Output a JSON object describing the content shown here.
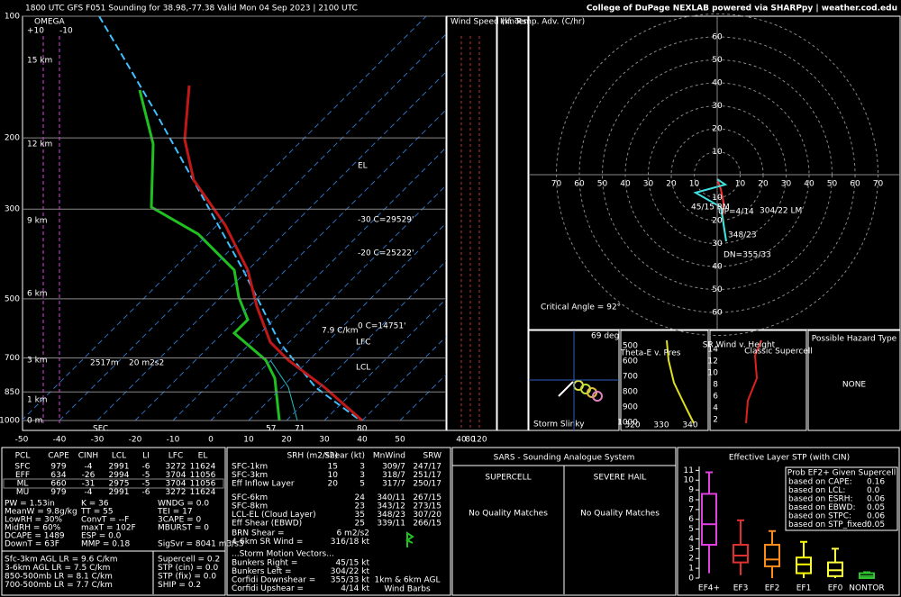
{
  "header": {
    "title": "1800 UTC GFS F051 Sounding for 38.98,-77.38 Valid  Mon 04 Sep 2023 | 2100 UTC",
    "credit": "College of DuPage NEXLAB powered via SHARPpy | weather.cod.edu"
  },
  "skewt": {
    "pressure_ticks": [
      100,
      200,
      300,
      500,
      700,
      850,
      1000
    ],
    "temp_ticks": [
      -50,
      -40,
      -30,
      -20,
      -10,
      0,
      10,
      20,
      30,
      40,
      50
    ],
    "omega_label": "OMEGA",
    "omega_ticks": [
      "+10",
      "-10"
    ],
    "height_labels": [
      "15 km",
      "12 km",
      "9 km",
      "6 km",
      "3 km",
      "1 km",
      "0 m"
    ],
    "annotations": [
      "EL",
      "-30 C=29529'",
      "-20 C=25222'",
      "0 C=14751'",
      "LFC",
      "LCL",
      "7.9 C/km",
      "2517m",
      "20 m2s2",
      "SFC",
      "57",
      "71",
      "80"
    ],
    "wind_speed_title": "Wind Speed (knots)",
    "temp_adv_title": "Inf. Temp. Adv. (C/hr)",
    "wind_speed_ticks": [
      40,
      80,
      120
    ]
  },
  "hodograph": {
    "ring_labels": [
      10,
      20,
      30,
      40,
      50,
      60,
      70
    ],
    "labels": [
      "45/15 RM",
      "304/22 LM",
      "UP=4/14",
      "DN=355/33",
      "348/23"
    ],
    "critical_angle": "Critical Angle = 92°"
  },
  "insets": {
    "slinky_angle": "69 deg",
    "slinky_title": "Storm Slinky",
    "theta_title": "Theta-E v. Pres",
    "theta_pressure_ticks": [
      500,
      600,
      700,
      800,
      900,
      1000
    ],
    "theta_temp_ticks": [
      320,
      330,
      340
    ],
    "srwind_title": "SR Wind v. Height",
    "srwind_ticks": [
      2,
      4,
      6,
      8,
      10,
      12,
      14
    ],
    "srwind_note": "Classic Supercell",
    "hazard_title": "Possible Hazard Type",
    "hazard_value": "NONE"
  },
  "parcel_table": {
    "headers": [
      "PCL",
      "CAPE",
      "CINH",
      "LCL",
      "LI",
      "LFC",
      "EL"
    ],
    "rows": [
      [
        "SFC",
        979,
        -4,
        2991,
        -6,
        3272,
        11624
      ],
      [
        "EFF",
        634,
        -26,
        2994,
        -5,
        3704,
        11056
      ],
      [
        "ML",
        660,
        -31,
        2975,
        -5,
        3704,
        11056
      ],
      [
        "MU",
        979,
        -4,
        2991,
        -6,
        3272,
        11624
      ]
    ]
  },
  "indices": [
    [
      "PW = 1.53in",
      "K = 36",
      "WNDG = 0.0"
    ],
    [
      "MeanW = 9.8g/kg",
      "TT = 55",
      "TEI = 17"
    ],
    [
      "LowRH = 30%",
      "ConvT = --F",
      "3CAPE = 0"
    ],
    [
      "MidRH = 60%",
      "maxT = 102F",
      "MBURST = 0"
    ],
    [
      "DCAPE = 1489",
      "ESP = 0.0"
    ],
    [
      "DownT = 63F",
      "MMP = 0.18",
      "SigSvr = 8041 m3/s3"
    ]
  ],
  "lapse_rates": [
    "Sfc-3km AGL LR = 9.6 C/km",
    "3-6km AGL LR = 7.5 C/km",
    "850-500mb LR = 8.1 C/km",
    "700-500mb LR = 7.7 C/km"
  ],
  "composites": [
    "Supercell = 0.2",
    "STP (cin) = 0.0",
    "STP (fix) = 0.0",
    "SHIP = 0.2"
  ],
  "kinematics": {
    "headers": [
      "SRH (m2/s2)",
      "Shear (kt)",
      "MnWind",
      "SRW"
    ],
    "rows": [
      {
        "layer": "SFC-1km",
        "srh": 15,
        "shear": 3,
        "mnwind": "309/7",
        "srw": "247/17"
      },
      {
        "layer": "SFC-3km",
        "srh": 10,
        "shear": 3,
        "mnwind": "318/7",
        "srw": "251/17"
      },
      {
        "layer": "Eff Inflow Layer",
        "srh": 20,
        "shear": 5,
        "mnwind": "317/7",
        "srw": "250/17"
      },
      {
        "layer": "SFC-6km",
        "shear": 24,
        "mnwind": "340/11",
        "srw": "267/15"
      },
      {
        "layer": "SFC-8km",
        "shear": 23,
        "mnwind": "343/12",
        "srw": "273/15"
      },
      {
        "layer": "LCL-EL (Cloud Layer)",
        "shear": 35,
        "mnwind": "348/23",
        "srw": "307/20"
      },
      {
        "layer": "Eff Shear (EBWD)",
        "shear": 25,
        "mnwind": "339/11",
        "srw": "266/15"
      }
    ],
    "extra": [
      [
        "BRN Shear =",
        "6 m2/s2"
      ],
      [
        "4-6km SR Wind =",
        "316/18 kt"
      ]
    ],
    "motion_title": "...Storm Motion Vectors...",
    "motion": [
      [
        "Bunkers Right =",
        "45/15 kt"
      ],
      [
        "Bunkers Left =",
        "304/22 kt"
      ],
      [
        "Corfidi Downshear =",
        "355/33 kt"
      ],
      [
        "Corfidi Upshear =",
        "4/14 kt"
      ]
    ],
    "barb_note": [
      "1km & 6km AGL",
      "Wind Barbs"
    ]
  },
  "sars": {
    "title": "SARS - Sounding Analogue System",
    "supercell": "SUPERCELL",
    "hail": "SEVERE HAIL",
    "supercell_result": "No Quality Matches",
    "hail_result": "No Quality Matches"
  },
  "chart_data": {
    "type": "box",
    "title": "Effective Layer STP (with CIN)",
    "categories": [
      "EF4+",
      "EF3",
      "EF2",
      "EF1",
      "EF0",
      "NONTOR"
    ],
    "colors": [
      "#e040e0",
      "#e03030",
      "#ff8c1a",
      "#ffff00",
      "#ffff40",
      "#30c030"
    ],
    "whisker_low": [
      0.5,
      0.3,
      0,
      0,
      0,
      0
    ],
    "q1": [
      3.4,
      1.6,
      1.2,
      0.5,
      0.2,
      0
    ],
    "median": [
      5.5,
      2.3,
      1.9,
      1.4,
      0.8,
      0.2
    ],
    "q3": [
      8.6,
      3.4,
      3.4,
      2.1,
      1.6,
      0.5
    ],
    "whisker_high": [
      10.8,
      5.9,
      4.8,
      3.7,
      3.0,
      0.6
    ],
    "ylim": [
      0,
      11.4
    ],
    "yticks": [
      0,
      1,
      2,
      3,
      4,
      5,
      6,
      7,
      8,
      9,
      10,
      11
    ],
    "legend_title": "Prob EF2+ Given Supercell",
    "legend": [
      [
        "based on CAPE:",
        "0.16"
      ],
      [
        "based on LCL:",
        "0.0"
      ],
      [
        "based on ESRH:",
        "0.06"
      ],
      [
        "based on EBWD:",
        "0.05"
      ],
      [
        "based on STPC:",
        "0.06"
      ],
      [
        "based on STP_fixed:",
        "0.05"
      ]
    ]
  }
}
